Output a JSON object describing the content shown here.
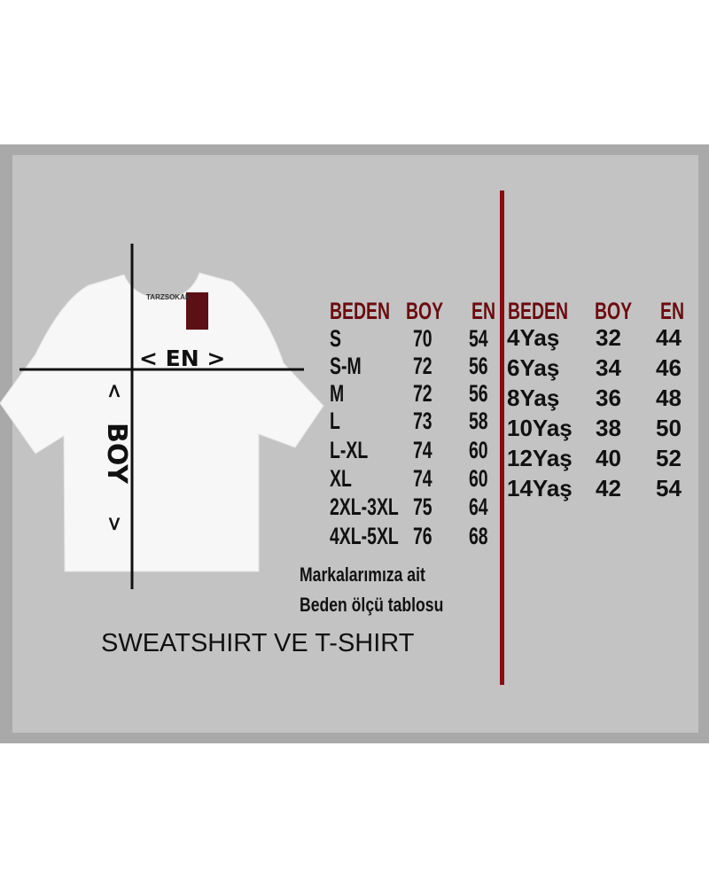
{
  "brand_label": "TARZSOKAK",
  "diagram": {
    "width_label": "< EN >",
    "length_label": "BOY",
    "arrow_up": "<",
    "arrow_down": ">"
  },
  "adult_table": {
    "headers": [
      "BEDEN",
      "BOY",
      "EN"
    ],
    "rows": [
      [
        "S",
        "70",
        "54"
      ],
      [
        "S-M",
        "72",
        "56"
      ],
      [
        "M",
        "72",
        "56"
      ],
      [
        "L",
        "73",
        "58"
      ],
      [
        "L-XL",
        "74",
        "60"
      ],
      [
        "XL",
        "74",
        "60"
      ],
      [
        "2XL-3XL",
        "75",
        "64"
      ],
      [
        "4XL-5XL",
        "76",
        "68"
      ]
    ]
  },
  "kids_table": {
    "headers": [
      "BEDEN",
      "BOY",
      "EN"
    ],
    "rows": [
      [
        "4Yaş",
        "32",
        "44"
      ],
      [
        "6Yaş",
        "34",
        "46"
      ],
      [
        "8Yaş",
        "36",
        "48"
      ],
      [
        "10Yaş",
        "38",
        "50"
      ],
      [
        "12Yaş",
        "40",
        "52"
      ],
      [
        "14Yaş",
        "42",
        "54"
      ]
    ]
  },
  "note_line1": "Markalarımıza ait",
  "note_line2": "Beden ölçü tablosu",
  "title": "SWEATSHIRT VE T-SHIRT",
  "colors": {
    "header": "#6b0b10",
    "divider": "#8a0c10",
    "panel": "#c3c3c3"
  }
}
